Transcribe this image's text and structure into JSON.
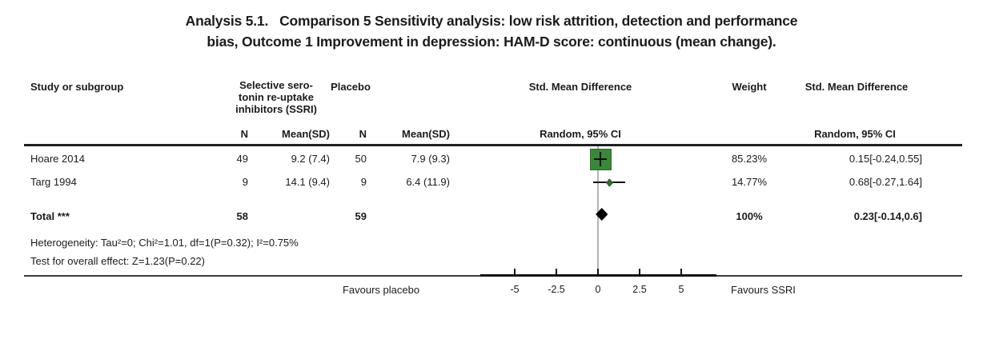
{
  "title": {
    "line1": "Analysis 5.1.   Comparison 5 Sensitivity analysis: low risk attrition, detection and performance",
    "line2": "bias, Outcome 1 Improvement in depression: HAM-D score: continuous (mean change)."
  },
  "columns": {
    "study": "Study or subgroup",
    "group1": "Selective sero-\ntonin re-uptake\ninhibitors (SSRI)",
    "group2": "Placebo",
    "n": "N",
    "mean_sd": "Mean(SD)",
    "smd": "Std. Mean Difference",
    "weight": "Weight",
    "model": "Random, 95% CI"
  },
  "rows": [
    {
      "study": "Hoare 2014",
      "n1": "49",
      "mean1": "9.2 (7.4)",
      "n2": "50",
      "mean2": "7.9 (9.3)",
      "weight": "85.23%",
      "ci_text": "0.15[-0.24,0.55]"
    },
    {
      "study": "Targ 1994",
      "n1": "9",
      "mean1": "14.1 (9.4)",
      "n2": "9",
      "mean2": "6.4 (11.9)",
      "weight": "14.77%",
      "ci_text": "0.68[-0.27,1.64]"
    }
  ],
  "total": {
    "label": "Total ***",
    "n1": "58",
    "n2": "59",
    "weight": "100%",
    "ci_text": "0.23[-0.14,0.6]"
  },
  "footnotes": {
    "heterogeneity": "Heterogeneity: Tau²=0; Chi²=1.01, df=1(P=0.32); I²=0.75%",
    "overall_effect": "Test for overall effect: Z=1.23(P=0.22)"
  },
  "axis": {
    "favours_left": "Favours placebo",
    "favours_right": "Favours SSRI"
  },
  "colors": {
    "marker_green": "#3a873a",
    "marker_green_dark": "#2e6b2e",
    "line_black": "#111111",
    "zero_line_gray": "#b4b4b4",
    "diamond_black": "#000000"
  },
  "chart_data": {
    "type": "forest",
    "title": "Analysis 5.1. Comparison 5 Sensitivity analysis: low risk attrition, detection and performance bias, Outcome 1 Improvement in depression: HAM-D score: continuous (mean change).",
    "effect_measure": "Std. Mean Difference",
    "model": "Random, 95% CI",
    "xlim": [
      -5,
      5
    ],
    "x_ticks": [
      -5,
      -2.5,
      0,
      2.5,
      5
    ],
    "x_tick_labels": [
      "-5",
      "-2.5",
      "0",
      "2.5",
      "5"
    ],
    "favours_left": "Favours placebo",
    "favours_right": "Favours SSRI",
    "studies": [
      {
        "name": "Hoare 2014",
        "ssri_n": 49,
        "ssri_mean_sd": "9.2 (7.4)",
        "placebo_n": 50,
        "placebo_mean_sd": "7.9 (9.3)",
        "weight_pct": 85.23,
        "estimate": 0.15,
        "ci_low": -0.24,
        "ci_high": 0.55
      },
      {
        "name": "Targ 1994",
        "ssri_n": 9,
        "ssri_mean_sd": "14.1 (9.4)",
        "placebo_n": 9,
        "placebo_mean_sd": "6.4 (11.9)",
        "weight_pct": 14.77,
        "estimate": 0.68,
        "ci_low": -0.27,
        "ci_high": 1.64
      }
    ],
    "total": {
      "label": "Total ***",
      "ssri_n": 58,
      "placebo_n": 59,
      "weight_pct": 100,
      "estimate": 0.23,
      "ci_low": -0.14,
      "ci_high": 0.6
    },
    "heterogeneity": "Heterogeneity: Tau²=0; Chi²=1.01, df=1(P=0.32); I²=0.75%",
    "overall_effect": "Test for overall effect: Z=1.23(P=0.22)"
  }
}
